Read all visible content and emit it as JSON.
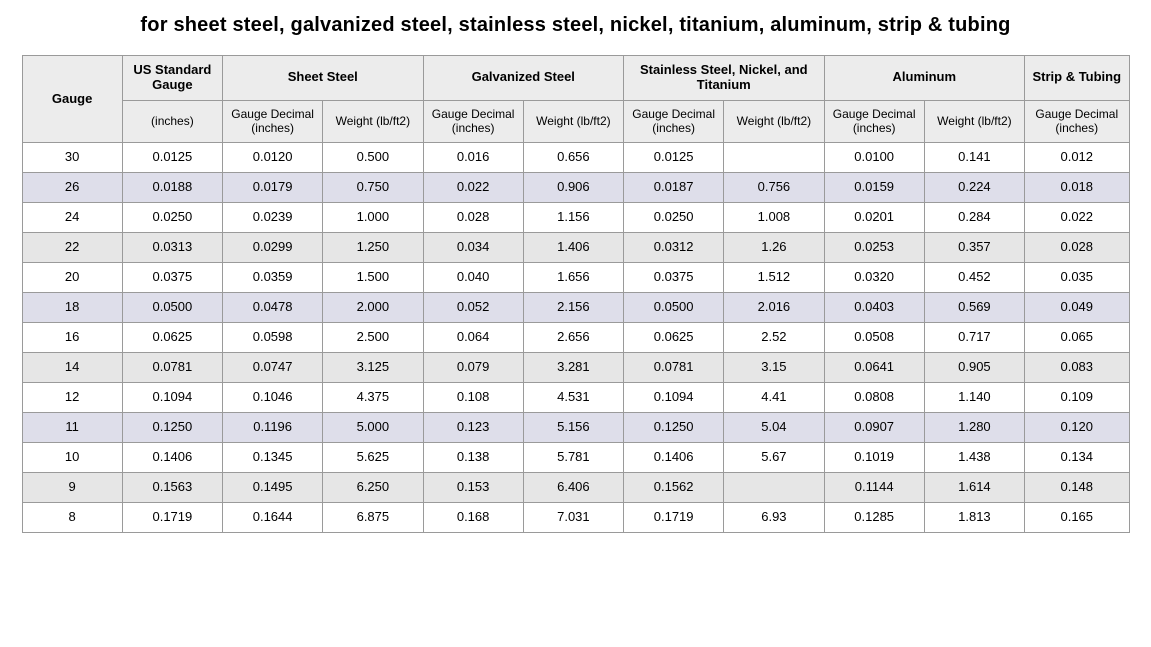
{
  "title": "for sheet steel, galvanized steel, stainless steel, nickel, titanium, aluminum, strip & tubing",
  "header": {
    "gauge": "Gauge",
    "us_std": "US Standard Gauge",
    "us_std_sub": "(inches)",
    "sheet_steel": "Sheet Steel",
    "galvanized": "Galvanized Steel",
    "stainless": "Stainless Steel, Nickel, and Titanium",
    "aluminum": "Aluminum",
    "strip": "Strip & Tubing",
    "gauge_dec": "Gauge Decimal (inches)",
    "weight": "Weight (lb/ft2)"
  },
  "row_shades": {
    "plain": "",
    "gray": "shade-gray",
    "lav": "shade-lav"
  },
  "rows": [
    {
      "shade": "plain",
      "gauge": "30",
      "std": "0.0125",
      "ss_gd": "0.0120",
      "ss_w": "0.500",
      "gv_gd": "0.016",
      "gv_w": "0.656",
      "sn_gd": "0.0125",
      "sn_w": "",
      "al_gd": "0.0100",
      "al_w": "0.141",
      "st_gd": "0.012"
    },
    {
      "shade": "lav",
      "gauge": "26",
      "std": "0.0188",
      "ss_gd": "0.0179",
      "ss_w": "0.750",
      "gv_gd": "0.022",
      "gv_w": "0.906",
      "sn_gd": "0.0187",
      "sn_w": "0.756",
      "al_gd": "0.0159",
      "al_w": "0.224",
      "st_gd": "0.018"
    },
    {
      "shade": "plain",
      "gauge": "24",
      "std": "0.0250",
      "ss_gd": "0.0239",
      "ss_w": "1.000",
      "gv_gd": "0.028",
      "gv_w": "1.156",
      "sn_gd": "0.0250",
      "sn_w": "1.008",
      "al_gd": "0.0201",
      "al_w": "0.284",
      "st_gd": "0.022"
    },
    {
      "shade": "gray",
      "gauge": "22",
      "std": "0.0313",
      "ss_gd": "0.0299",
      "ss_w": "1.250",
      "gv_gd": "0.034",
      "gv_w": "1.406",
      "sn_gd": "0.0312",
      "sn_w": "1.26",
      "al_gd": "0.0253",
      "al_w": "0.357",
      "st_gd": "0.028"
    },
    {
      "shade": "plain",
      "gauge": "20",
      "std": "0.0375",
      "ss_gd": "0.0359",
      "ss_w": "1.500",
      "gv_gd": "0.040",
      "gv_w": "1.656",
      "sn_gd": "0.0375",
      "sn_w": "1.512",
      "al_gd": "0.0320",
      "al_w": "0.452",
      "st_gd": "0.035"
    },
    {
      "shade": "lav",
      "gauge": "18",
      "std": "0.0500",
      "ss_gd": "0.0478",
      "ss_w": "2.000",
      "gv_gd": "0.052",
      "gv_w": "2.156",
      "sn_gd": "0.0500",
      "sn_w": "2.016",
      "al_gd": "0.0403",
      "al_w": "0.569",
      "st_gd": "0.049"
    },
    {
      "shade": "plain",
      "gauge": "16",
      "std": "0.0625",
      "ss_gd": "0.0598",
      "ss_w": "2.500",
      "gv_gd": "0.064",
      "gv_w": "2.656",
      "sn_gd": "0.0625",
      "sn_w": "2.52",
      "al_gd": "0.0508",
      "al_w": "0.717",
      "st_gd": "0.065"
    },
    {
      "shade": "gray",
      "gauge": "14",
      "std": "0.0781",
      "ss_gd": "0.0747",
      "ss_w": "3.125",
      "gv_gd": "0.079",
      "gv_w": "3.281",
      "sn_gd": "0.0781",
      "sn_w": "3.15",
      "al_gd": "0.0641",
      "al_w": "0.905",
      "st_gd": "0.083"
    },
    {
      "shade": "plain",
      "gauge": "12",
      "std": "0.1094",
      "ss_gd": "0.1046",
      "ss_w": "4.375",
      "gv_gd": "0.108",
      "gv_w": "4.531",
      "sn_gd": "0.1094",
      "sn_w": "4.41",
      "al_gd": "0.0808",
      "al_w": "1.140",
      "st_gd": "0.109"
    },
    {
      "shade": "lav",
      "gauge": "11",
      "std": "0.1250",
      "ss_gd": "0.1196",
      "ss_w": "5.000",
      "gv_gd": "0.123",
      "gv_w": "5.156",
      "sn_gd": "0.1250",
      "sn_w": "5.04",
      "al_gd": "0.0907",
      "al_w": "1.280",
      "st_gd": "0.120"
    },
    {
      "shade": "plain",
      "gauge": "10",
      "std": "0.1406",
      "ss_gd": "0.1345",
      "ss_w": "5.625",
      "gv_gd": "0.138",
      "gv_w": "5.781",
      "sn_gd": "0.1406",
      "sn_w": "5.67",
      "al_gd": "0.1019",
      "al_w": "1.438",
      "st_gd": "0.134"
    },
    {
      "shade": "gray",
      "gauge": "9",
      "std": "0.1563",
      "ss_gd": "0.1495",
      "ss_w": "6.250",
      "gv_gd": "0.153",
      "gv_w": "6.406",
      "sn_gd": "0.1562",
      "sn_w": "",
      "al_gd": "0.1144",
      "al_w": "1.614",
      "st_gd": "0.148"
    },
    {
      "shade": "plain",
      "gauge": "8",
      "std": "0.1719",
      "ss_gd": "0.1644",
      "ss_w": "6.875",
      "gv_gd": "0.168",
      "gv_w": "7.031",
      "sn_gd": "0.1719",
      "sn_w": "6.93",
      "al_gd": "0.1285",
      "al_w": "1.813",
      "st_gd": "0.165"
    }
  ]
}
